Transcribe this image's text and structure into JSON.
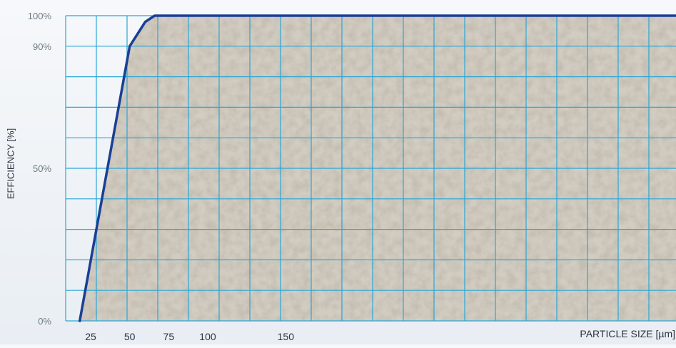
{
  "chart_data": {
    "type": "area",
    "title": "",
    "xlabel": "PARTICLE SIZE [µm]",
    "ylabel": "EFFICIENCY [%]",
    "x_ticks": [
      {
        "value": 25,
        "label": "25"
      },
      {
        "value": 50,
        "label": "50"
      },
      {
        "value": 75,
        "label": "75"
      },
      {
        "value": 100,
        "label": "100"
      },
      {
        "value": 150,
        "label": "150"
      }
    ],
    "y_ticks": [
      {
        "value": 0,
        "label": "0%"
      },
      {
        "value": 50,
        "label": "50%"
      },
      {
        "value": 90,
        "label": "90%"
      },
      {
        "value": 100,
        "label": "100%"
      }
    ],
    "xlim": [
      9,
      400
    ],
    "ylim": [
      0,
      100
    ],
    "grid": true,
    "series": [
      {
        "x": [
          18,
          50,
          60,
          66,
          75,
          400
        ],
        "y": [
          0,
          90,
          98,
          100,
          100,
          100
        ]
      }
    ],
    "colors": {
      "curve": "#1a3f95",
      "grid": "#2aa7d6",
      "fill": "#d2cdc3",
      "text": "#6e7b86",
      "axis_title": "#2a3440"
    }
  }
}
